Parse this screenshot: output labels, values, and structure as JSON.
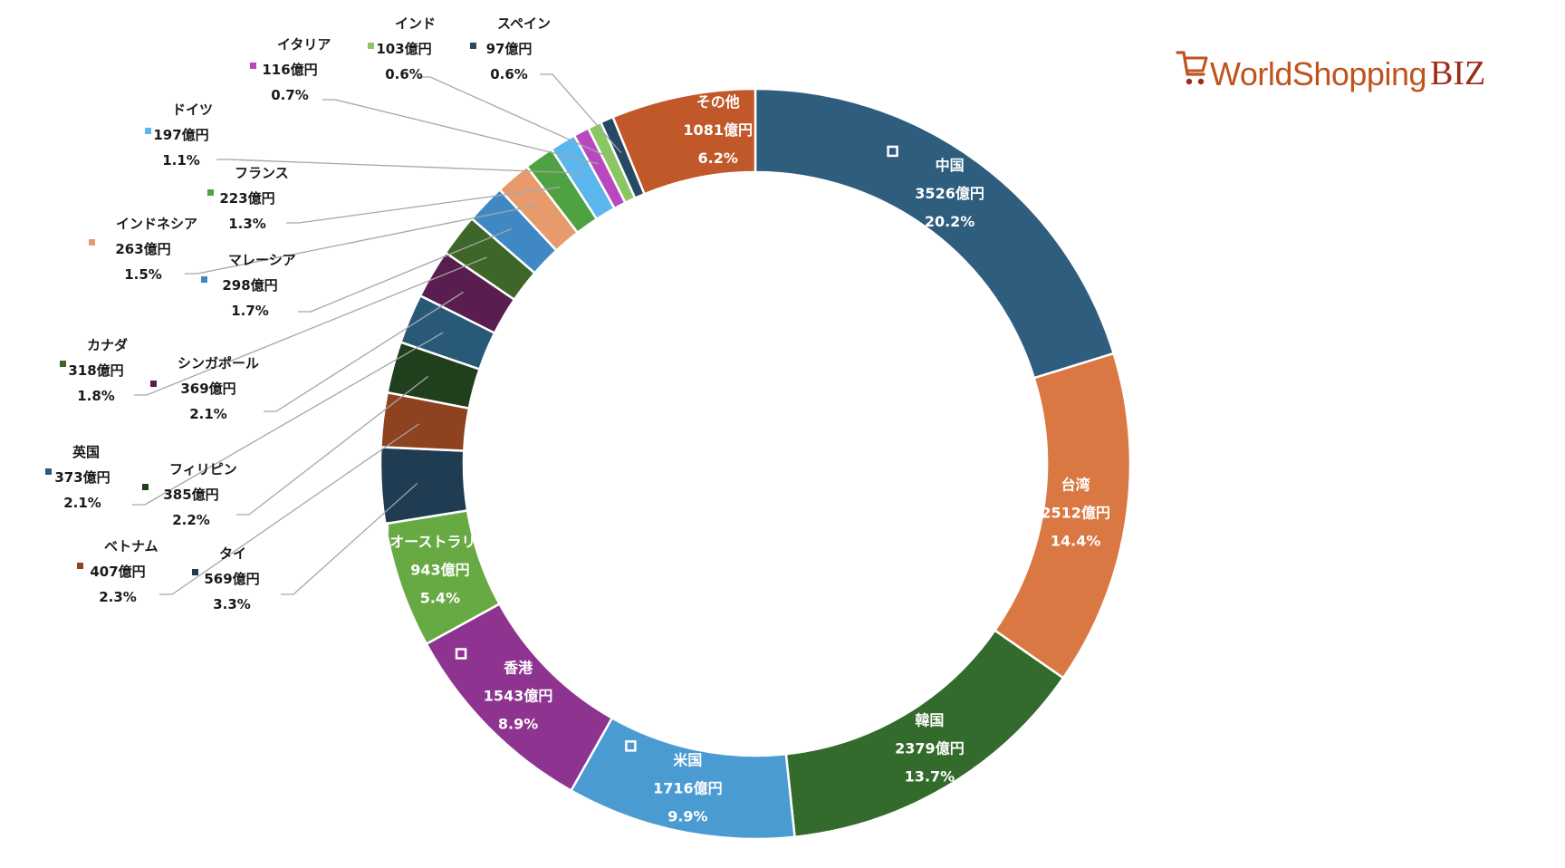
{
  "brand": {
    "name_main": "WorldShopping",
    "name_suffix": "BIZ",
    "color_main": "#c0531d",
    "color_suffix": "#9c2a18"
  },
  "chart_data": {
    "type": "donut",
    "title": "",
    "legend": "none",
    "unit": "億円",
    "series": [
      {
        "values": [
          {
            "label": "中国",
            "value": 3526,
            "value_text": "3526億円",
            "pct": "20.2%",
            "color": "#2e5d7e",
            "placement": "inside"
          },
          {
            "label": "台湾",
            "value": 2512,
            "value_text": "2512億円",
            "pct": "14.4%",
            "color": "#d97843",
            "placement": "inside"
          },
          {
            "label": "韓国",
            "value": 2379,
            "value_text": "2379億円",
            "pct": "13.7%",
            "color": "#336b2c",
            "placement": "inside"
          },
          {
            "label": "米国",
            "value": 1716,
            "value_text": "1716億円",
            "pct": "9.9%",
            "color": "#4a9bd1",
            "placement": "inside"
          },
          {
            "label": "香港",
            "value": 1543,
            "value_text": "1543億円",
            "pct": "8.9%",
            "color": "#8e3490",
            "placement": "inside"
          },
          {
            "label": "オーストラリア",
            "value": 943,
            "value_text": "943億円",
            "pct": "5.4%",
            "color": "#67a943",
            "placement": "inside"
          },
          {
            "label": "タイ",
            "value": 569,
            "value_text": "569億円",
            "pct": "3.3%",
            "color": "#1f3c53",
            "placement": "outside"
          },
          {
            "label": "ベトナム",
            "value": 407,
            "value_text": "407億円",
            "pct": "2.3%",
            "color": "#8e4220",
            "placement": "outside"
          },
          {
            "label": "フィリピン",
            "value": 385,
            "value_text": "385億円",
            "pct": "2.2%",
            "color": "#203f1c",
            "placement": "outside"
          },
          {
            "label": "英国",
            "value": 373,
            "value_text": "373億円",
            "pct": "2.1%",
            "color": "#285a78",
            "placement": "outside"
          },
          {
            "label": "シンガポール",
            "value": 369,
            "value_text": "369億円",
            "pct": "2.1%",
            "color": "#5a1d4f",
            "placement": "outside"
          },
          {
            "label": "カナダ",
            "value": 318,
            "value_text": "318億円",
            "pct": "1.8%",
            "color": "#3e6628",
            "placement": "outside"
          },
          {
            "label": "マレーシア",
            "value": 298,
            "value_text": "298億円",
            "pct": "1.7%",
            "color": "#3f88c4",
            "placement": "outside"
          },
          {
            "label": "インドネシア",
            "value": 263,
            "value_text": "263億円",
            "pct": "1.5%",
            "color": "#e79b6c",
            "placement": "outside"
          },
          {
            "label": "フランス",
            "value": 223,
            "value_text": "223億円",
            "pct": "1.3%",
            "color": "#4fa241",
            "placement": "outside"
          },
          {
            "label": "ドイツ",
            "value": 197,
            "value_text": "197億円",
            "pct": "1.1%",
            "color": "#5ab6ec",
            "placement": "outside"
          },
          {
            "label": "イタリア",
            "value": 116,
            "value_text": "116億円",
            "pct": "0.7%",
            "color": "#b848be",
            "placement": "outside"
          },
          {
            "label": "インド",
            "value": 103,
            "value_text": "103億円",
            "pct": "0.6%",
            "color": "#8bc664",
            "placement": "outside"
          },
          {
            "label": "スペイン",
            "value": 97,
            "value_text": "97億円",
            "pct": "0.6%",
            "color": "#264a63",
            "placement": "outside"
          },
          {
            "label": "その他",
            "value": 1081,
            "value_text": "1081億円",
            "pct": "6.2%",
            "color": "#c0582a",
            "placement": "inside"
          }
        ]
      }
    ]
  }
}
